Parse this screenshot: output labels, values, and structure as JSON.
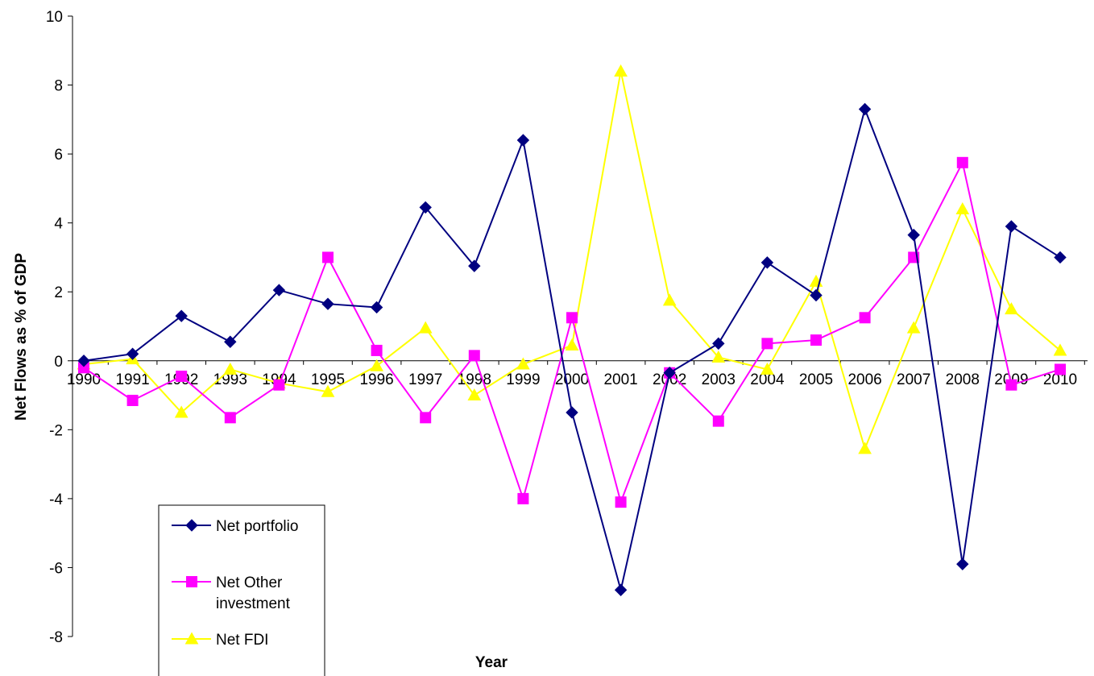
{
  "chart_data": {
    "type": "line",
    "title": "",
    "xlabel": "Year",
    "ylabel": "Net Flows as % of GDP",
    "ylim": [
      -8,
      10
    ],
    "ytick_step": 2,
    "yticks": [
      "-8",
      "-6",
      "-4",
      "-2",
      "0",
      "2",
      "4",
      "6",
      "8",
      "10"
    ],
    "categories": [
      "1990",
      "1991",
      "1992",
      "1993",
      "1994",
      "1995",
      "1996",
      "1997",
      "1998",
      "1999",
      "2000",
      "2001",
      "2002",
      "2003",
      "2004",
      "2005",
      "2006",
      "2007",
      "2008",
      "2009",
      "2010"
    ],
    "grid": false,
    "legend_position": "bottom-left",
    "series": [
      {
        "name": "Net portfolio",
        "color": "#000080",
        "marker": "diamond",
        "values": [
          0.0,
          0.2,
          1.3,
          0.55,
          2.05,
          1.65,
          1.55,
          4.45,
          2.75,
          6.4,
          -1.5,
          -6.65,
          -0.35,
          0.5,
          2.85,
          1.9,
          7.3,
          3.65,
          -5.9,
          3.9,
          3.0
        ]
      },
      {
        "name": "Net Other investment",
        "legend_lines": [
          "Net Other",
          "investment"
        ],
        "color": "#FF00FF",
        "marker": "square",
        "values": [
          -0.2,
          -1.15,
          -0.45,
          -1.65,
          -0.7,
          3.0,
          0.3,
          -1.65,
          0.15,
          -4.0,
          1.25,
          -4.1,
          -0.35,
          -1.75,
          0.5,
          0.6,
          1.25,
          3.0,
          5.75,
          -0.7,
          -0.25
        ]
      },
      {
        "name": "Net FDI",
        "color": "#FFFF00",
        "marker": "triangle",
        "values": [
          -0.1,
          0.05,
          -1.5,
          -0.25,
          -0.65,
          -0.9,
          -0.15,
          0.95,
          -1.0,
          -0.1,
          0.45,
          8.4,
          1.75,
          0.1,
          -0.25,
          2.3,
          -2.55,
          0.95,
          4.4,
          1.5,
          0.3
        ]
      }
    ]
  }
}
